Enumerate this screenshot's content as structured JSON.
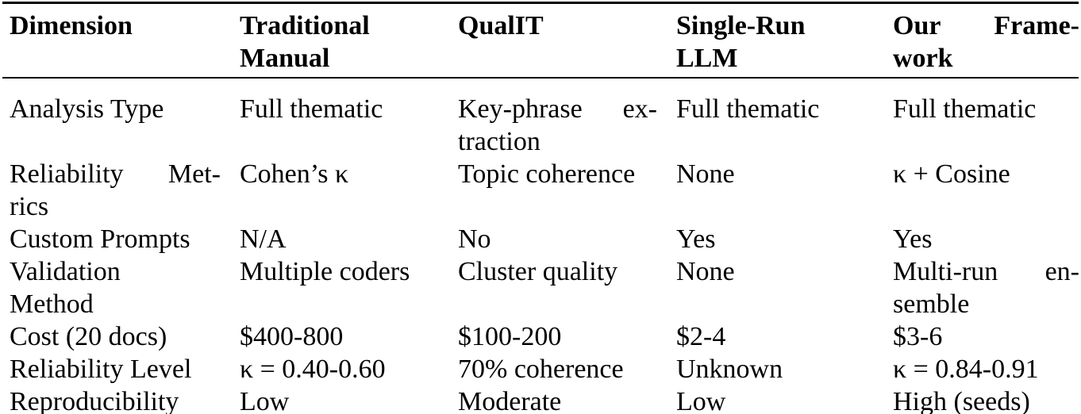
{
  "table": {
    "header": [
      {
        "lines": [
          "Dimension"
        ]
      },
      {
        "lines": [
          "Traditional",
          "Manual"
        ]
      },
      {
        "lines": [
          "QualIT"
        ]
      },
      {
        "lines": [
          "Single-Run",
          "LLM"
        ]
      },
      {
        "lines": [
          "Our Frame-",
          "work"
        ]
      }
    ],
    "rows": [
      {
        "cells": [
          {
            "lines": [
              "Analysis Type"
            ]
          },
          {
            "lines": [
              "Full thematic"
            ]
          },
          {
            "lines": [
              "Key-phrase ex-",
              "traction"
            ]
          },
          {
            "lines": [
              "Full thematic"
            ]
          },
          {
            "lines": [
              "Full thematic"
            ]
          }
        ]
      },
      {
        "cells": [
          {
            "lines": [
              "Reliability Met-",
              "rics"
            ]
          },
          {
            "lines": [
              "Cohen’s κ"
            ]
          },
          {
            "lines": [
              "Topic coherence"
            ]
          },
          {
            "lines": [
              "None"
            ]
          },
          {
            "lines": [
              "κ + Cosine"
            ]
          }
        ]
      },
      {
        "cells": [
          {
            "lines": [
              "Custom Prompts"
            ]
          },
          {
            "lines": [
              "N/A"
            ]
          },
          {
            "lines": [
              "No"
            ]
          },
          {
            "lines": [
              "Yes"
            ]
          },
          {
            "lines": [
              "Yes"
            ]
          }
        ]
      },
      {
        "cells": [
          {
            "lines": [
              "Validation",
              "Method"
            ]
          },
          {
            "lines": [
              "Multiple coders"
            ]
          },
          {
            "lines": [
              "Cluster quality"
            ]
          },
          {
            "lines": [
              "None"
            ]
          },
          {
            "lines": [
              "Multi-run en-",
              "semble"
            ]
          }
        ]
      },
      {
        "cells": [
          {
            "lines": [
              "Cost (20 docs)"
            ]
          },
          {
            "lines": [
              "$400-800"
            ]
          },
          {
            "lines": [
              "$100-200"
            ]
          },
          {
            "lines": [
              "$2-4"
            ]
          },
          {
            "lines": [
              "$3-6"
            ]
          }
        ]
      },
      {
        "cells": [
          {
            "lines": [
              "Reliability Level"
            ]
          },
          {
            "lines": [
              "κ = 0.40-0.60"
            ]
          },
          {
            "lines": [
              "70% coherence"
            ]
          },
          {
            "lines": [
              "Unknown"
            ]
          },
          {
            "lines": [
              "κ = 0.84-0.91"
            ]
          }
        ]
      },
      {
        "cells": [
          {
            "lines": [
              "Reproducibility"
            ]
          },
          {
            "lines": [
              "Low"
            ]
          },
          {
            "lines": [
              "Moderate"
            ]
          },
          {
            "lines": [
              "Low"
            ]
          },
          {
            "lines": [
              "High (seeds)"
            ]
          }
        ]
      }
    ],
    "colors": {
      "text": "#000000",
      "background": "#ffffff",
      "rule": "#000000"
    }
  }
}
